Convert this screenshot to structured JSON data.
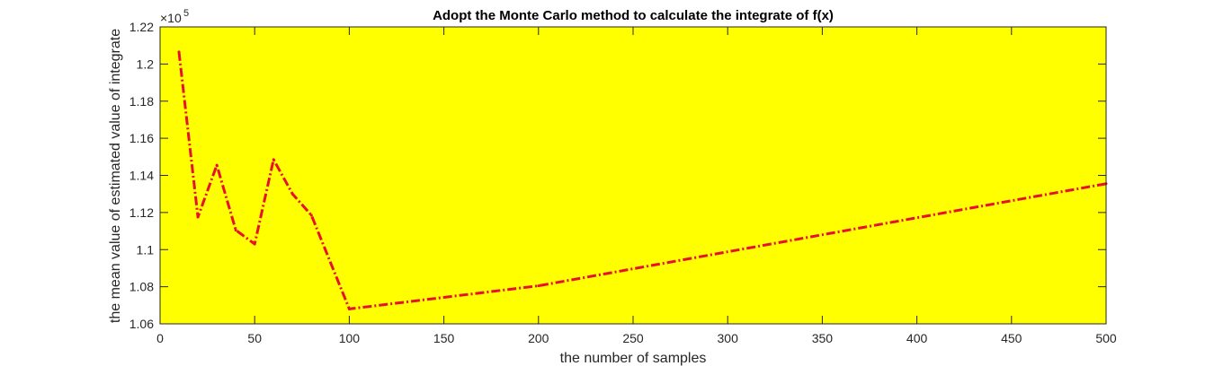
{
  "chart_data": {
    "type": "line",
    "title": "Adopt the Monte Carlo method to calculate the integrate of f(x)",
    "xlabel": "the number of samples",
    "ylabel": "the mean value of estimated value of integrate",
    "y_exponent_base": "×10",
    "y_exponent_power": "5",
    "xlim": [
      0,
      500
    ],
    "ylim": [
      1.06,
      1.22
    ],
    "x_ticks": [
      0,
      50,
      100,
      150,
      200,
      250,
      300,
      350,
      400,
      450,
      500
    ],
    "x_tick_labels": [
      "0",
      "50",
      "100",
      "150",
      "200",
      "250",
      "300",
      "350",
      "400",
      "450",
      "500"
    ],
    "y_ticks": [
      1.06,
      1.08,
      1.1,
      1.12,
      1.14,
      1.16,
      1.18,
      1.2,
      1.22
    ],
    "y_tick_labels": [
      "1.06",
      "1.08",
      "1.1",
      "1.12",
      "1.14",
      "1.16",
      "1.18",
      "1.2",
      "1.22"
    ],
    "grid": false,
    "plot_background": "#ffff00",
    "series": [
      {
        "color": "#e8112d",
        "line_style": "dash-dot",
        "x": [
          10,
          20,
          30,
          40,
          50,
          60,
          70,
          80,
          100,
          200,
          500
        ],
        "y": [
          1.2065,
          1.1175,
          1.1455,
          1.1105,
          1.103,
          1.1485,
          1.13,
          1.1185,
          1.068,
          1.0805,
          1.1355
        ]
      }
    ]
  }
}
